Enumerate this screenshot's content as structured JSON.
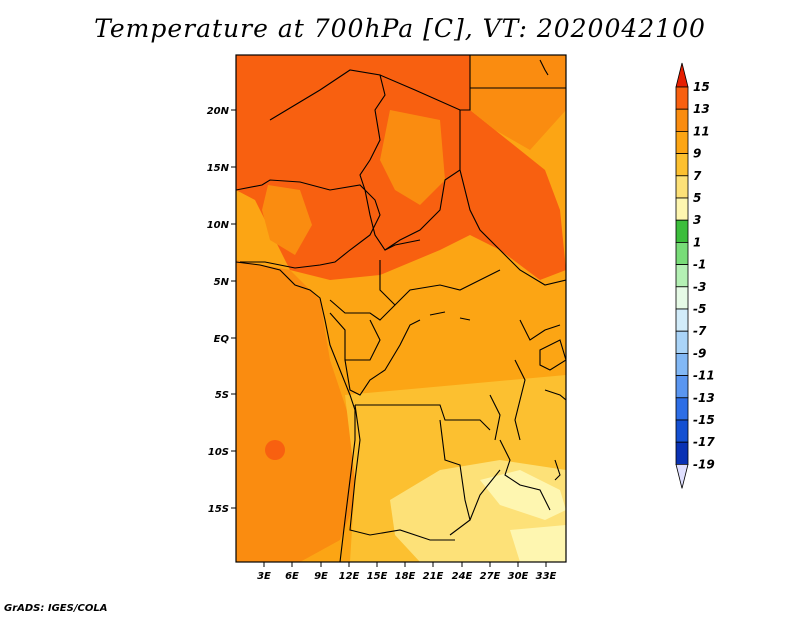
{
  "title": "Temperature at 700hPa [C], VT: 2020042100",
  "footer": "GrADS: IGES/COLA",
  "map": {
    "lat_labels": [
      "20N",
      "15N",
      "10N",
      "5N",
      "EQ",
      "5S",
      "10S",
      "15S"
    ],
    "lon_labels": [
      "3E",
      "6E",
      "9E",
      "12E",
      "15E",
      "18E",
      "21E",
      "24E",
      "27E",
      "30E",
      "33E"
    ]
  },
  "colorbar": {
    "labels": [
      "15",
      "13",
      "11",
      "9",
      "7",
      "5",
      "3",
      "1",
      "-1",
      "-3",
      "-5",
      "-7",
      "-9",
      "-11",
      "-13",
      "-15",
      "-17",
      "-19"
    ],
    "colors": [
      "#f03c00",
      "#f86010",
      "#fa8c10",
      "#fca514",
      "#fcc030",
      "#fde178",
      "#fef6b0",
      "#3cbe3c",
      "#78dc78",
      "#b4f0b4",
      "#e6fae6",
      "#d2ecfa",
      "#aad4f8",
      "#82b8f5",
      "#5a96f0",
      "#2d6ee6",
      "#1450d2",
      "#0a32b4",
      "#0a1e78"
    ],
    "top_arrow_color": "#e61e00",
    "bottom_arrow_color": "#e0e0ff"
  }
}
